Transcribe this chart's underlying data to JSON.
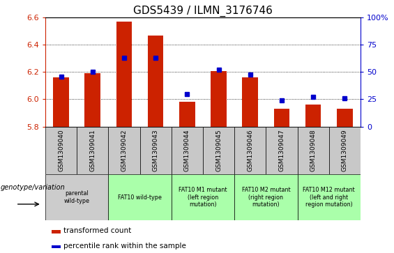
{
  "title": "GDS5439 / ILMN_3176746",
  "samples": [
    "GSM1309040",
    "GSM1309041",
    "GSM1309042",
    "GSM1309043",
    "GSM1309044",
    "GSM1309045",
    "GSM1309046",
    "GSM1309047",
    "GSM1309048",
    "GSM1309049"
  ],
  "transformed_count": [
    6.16,
    6.19,
    6.57,
    6.47,
    5.98,
    6.21,
    6.16,
    5.93,
    5.96,
    5.93
  ],
  "percentile_rank": [
    46,
    50,
    63,
    63,
    30,
    52,
    48,
    24,
    27,
    26
  ],
  "ylim_left": [
    5.8,
    6.6
  ],
  "ylim_right": [
    0,
    100
  ],
  "bar_color": "#cc2200",
  "dot_color": "#0000cc",
  "bar_bottom": 5.8,
  "group_spans": [
    {
      "start": 0,
      "end": 2,
      "label": "parental\nwild-type",
      "color": "#cccccc"
    },
    {
      "start": 2,
      "end": 4,
      "label": "FAT10 wild-type",
      "color": "#aaffaa"
    },
    {
      "start": 4,
      "end": 6,
      "label": "FAT10 M1 mutant\n(left region\nmutation)",
      "color": "#aaffaa"
    },
    {
      "start": 6,
      "end": 8,
      "label": "FAT10 M2 mutant\n(right region\nmutation)",
      "color": "#aaffaa"
    },
    {
      "start": 8,
      "end": 10,
      "label": "FAT10 M12 mutant\n(left and right\nregion mutation)",
      "color": "#aaffaa"
    }
  ],
  "legend_items": [
    {
      "color": "#cc2200",
      "label": "transformed count"
    },
    {
      "color": "#0000cc",
      "label": "percentile rank within the sample"
    }
  ],
  "genotype_label": "genotype/variation",
  "tick_color_left": "#cc2200",
  "tick_color_right": "#0000cc",
  "title_fontsize": 11,
  "cell_gray": "#c8c8c8",
  "cell_green": "#aaffaa"
}
